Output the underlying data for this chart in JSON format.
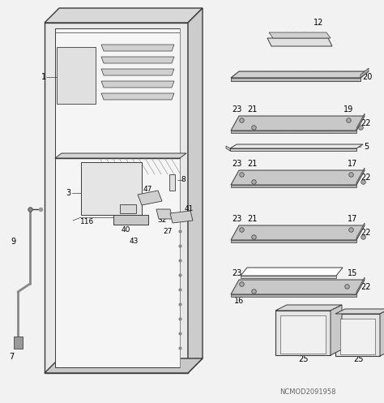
{
  "bg": "#f2f2f2",
  "lc": "#3a3a3a",
  "watermark": "NCMOD2091958",
  "fig_w": 4.74,
  "fig_h": 4.97,
  "dpi": 100
}
